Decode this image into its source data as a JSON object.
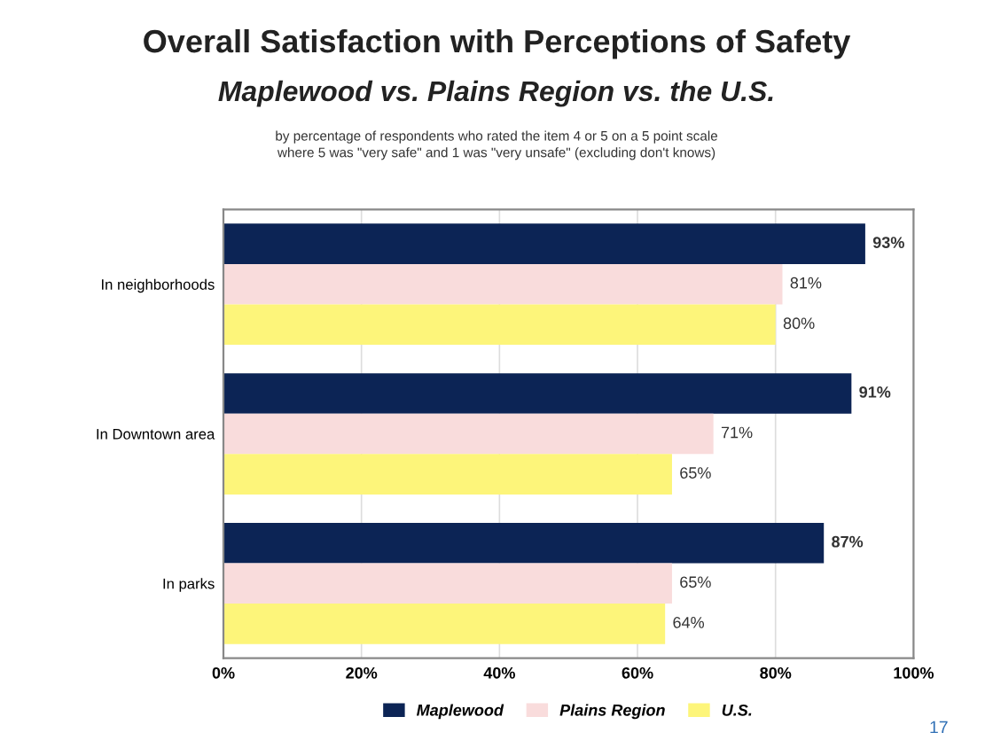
{
  "chart_data": {
    "type": "bar",
    "orientation": "horizontal",
    "title": "Overall Satisfaction with Perceptions of Safety",
    "subtitle": "Maplewood vs. Plains Region vs. the U.S.",
    "annotations": [
      "by percentage of respondents who rated the item 4 or 5 on a 5 point scale\nwhere 5 was \"very safe\" and 1 was \"very unsafe\" (excluding don't knows)",
      "17"
    ],
    "categories": [
      "In neighborhoods",
      "In Downtown area",
      "In parks"
    ],
    "series": [
      {
        "name": "Maplewood",
        "color": "#0c2455",
        "values": [
          93,
          91,
          87
        ],
        "value_labels": [
          "93%",
          "91%",
          "87%"
        ]
      },
      {
        "name": "Plains Region",
        "color": "#f9dcdc",
        "values": [
          81,
          71,
          65
        ],
        "value_labels": [
          "81%",
          "71%",
          "65%"
        ]
      },
      {
        "name": "U.S.",
        "color": "#fdf57a",
        "values": [
          80,
          65,
          64
        ],
        "value_labels": [
          "80%",
          "65%",
          "64%"
        ]
      }
    ],
    "xlim": [
      0,
      100
    ],
    "xticks": [
      {
        "value": 0,
        "label": "0%"
      },
      {
        "value": 20,
        "label": "20%"
      },
      {
        "value": 40,
        "label": "40%"
      },
      {
        "value": 60,
        "label": "60%"
      },
      {
        "value": 80,
        "label": "80%"
      },
      {
        "value": 100,
        "label": "100%"
      }
    ],
    "grid": "x",
    "legend": "bottom"
  }
}
